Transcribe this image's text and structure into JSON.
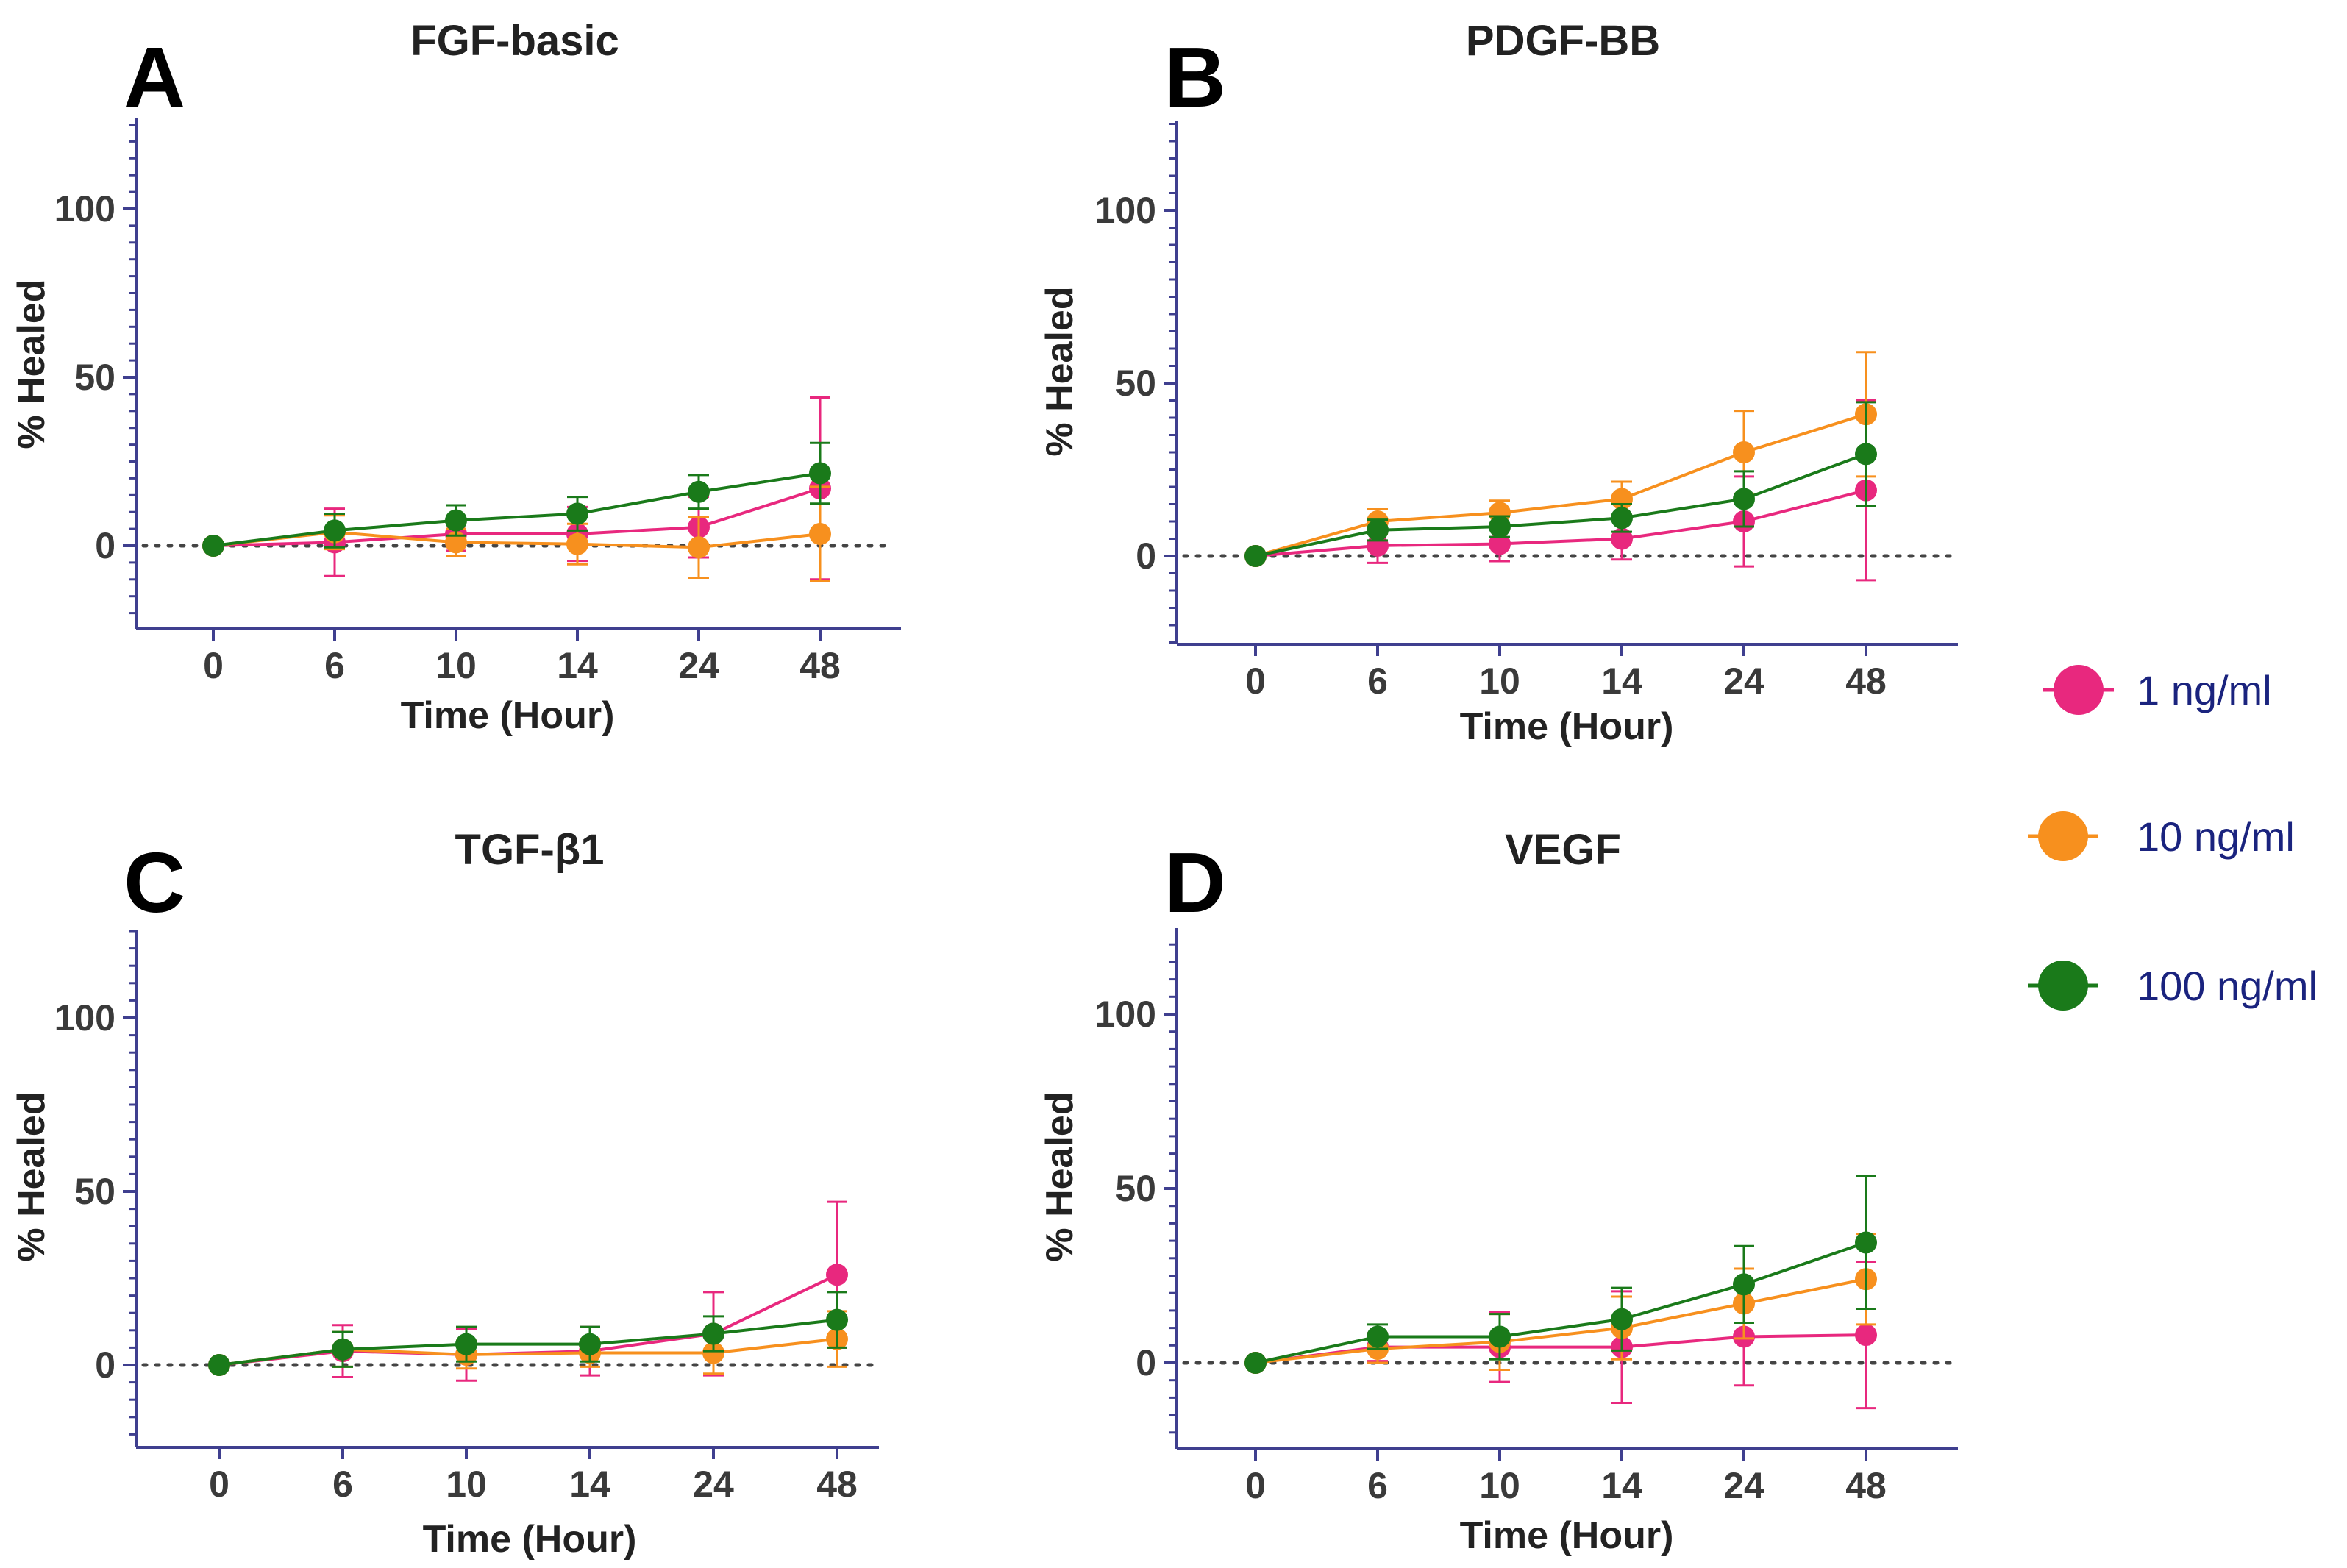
{
  "legend": [
    {
      "label": "1 ng/ml",
      "color": "#e8287e"
    },
    {
      "label": "10 ng/ml",
      "color": "#f7901e"
    },
    {
      "label": "100 ng/ml",
      "color": "#1a7a1a"
    }
  ],
  "axis_color": "#3f3f8f",
  "chart_data": [
    {
      "type": "line",
      "panel_letter": "A",
      "title": "FGF-basic",
      "xlabel": "Time (Hour)",
      "ylabel": "% Healed",
      "categories": [
        "0",
        "6",
        "10",
        "14",
        "24",
        "48"
      ],
      "ylim": [
        -25,
        125
      ],
      "yticks": [
        0,
        50,
        100
      ],
      "reference_line": 0,
      "series": [
        {
          "name": "1 ng/ml",
          "values": [
            0,
            1,
            3.5,
            3.5,
            5.5,
            17
          ],
          "errors": [
            0,
            10,
            5,
            8,
            9,
            27
          ]
        },
        {
          "name": "10 ng/ml",
          "values": [
            0,
            4,
            1,
            0.5,
            -0.5,
            3.5
          ],
          "errors": [
            0,
            5,
            4,
            6,
            9,
            14
          ]
        },
        {
          "name": "100 ng/ml",
          "values": [
            0,
            4.5,
            7.5,
            9.5,
            16,
            21.5
          ],
          "errors": [
            0,
            5,
            4.5,
            5,
            5,
            9
          ]
        }
      ]
    },
    {
      "type": "line",
      "panel_letter": "B",
      "title": "PDGF-BB",
      "xlabel": "Time (Hour)",
      "ylabel": "% Healed",
      "categories": [
        "0",
        "6",
        "10",
        "14",
        "24",
        "48"
      ],
      "ylim": [
        -25,
        125
      ],
      "yticks": [
        0,
        50,
        100
      ],
      "reference_line": 0,
      "series": [
        {
          "name": "1 ng/ml",
          "values": [
            0,
            3,
            3.5,
            5,
            10,
            19
          ],
          "errors": [
            0,
            5,
            5,
            6,
            13,
            26
          ]
        },
        {
          "name": "10 ng/ml",
          "values": [
            0,
            10,
            12.5,
            16.5,
            30,
            41
          ],
          "errors": [
            0,
            3.5,
            3.5,
            5,
            12,
            18
          ]
        },
        {
          "name": "100 ng/ml",
          "values": [
            0,
            7.5,
            8.5,
            11,
            16.5,
            29.5
          ],
          "errors": [
            0,
            3,
            3,
            4,
            8,
            15
          ]
        }
      ]
    },
    {
      "type": "line",
      "panel_letter": "C",
      "title": "TGF-β1",
      "xlabel": "Time (Hour)",
      "ylabel": "% Healed",
      "categories": [
        "0",
        "6",
        "10",
        "14",
        "24",
        "48"
      ],
      "ylim": [
        -25,
        125
      ],
      "yticks": [
        0,
        50,
        100
      ],
      "reference_line": 0,
      "series": [
        {
          "name": "1 ng/ml",
          "values": [
            0,
            4,
            3,
            4,
            9,
            26
          ],
          "errors": [
            0,
            7.5,
            7.5,
            7,
            12,
            21
          ]
        },
        {
          "name": "10 ng/ml",
          "values": [
            0,
            4.5,
            3,
            3.5,
            3.5,
            7.5
          ],
          "errors": [
            0,
            5,
            4,
            4,
            6,
            8
          ]
        },
        {
          "name": "100 ng/ml",
          "values": [
            0,
            4.5,
            6,
            6,
            9,
            13
          ],
          "errors": [
            0,
            5,
            5,
            5,
            5,
            8
          ]
        }
      ]
    },
    {
      "type": "line",
      "panel_letter": "D",
      "title": "VEGF",
      "xlabel": "Time (Hour)",
      "ylabel": "% Healed",
      "categories": [
        "0",
        "6",
        "10",
        "14",
        "24",
        "48"
      ],
      "ylim": [
        -25,
        125
      ],
      "yticks": [
        0,
        50,
        100
      ],
      "reference_line": 0,
      "series": [
        {
          "name": "1 ng/ml",
          "values": [
            0,
            4.5,
            4.5,
            4.5,
            7.5,
            8
          ],
          "errors": [
            0,
            4,
            10,
            16,
            14,
            21
          ]
        },
        {
          "name": "10 ng/ml",
          "values": [
            0,
            4,
            6,
            10,
            17,
            24
          ],
          "errors": [
            0,
            4,
            8,
            9,
            10,
            13
          ]
        },
        {
          "name": "100 ng/ml",
          "values": [
            0,
            7.5,
            7.5,
            12.5,
            22.5,
            34.5
          ],
          "errors": [
            0,
            3.5,
            6.5,
            9,
            11,
            19
          ]
        }
      ]
    }
  ]
}
